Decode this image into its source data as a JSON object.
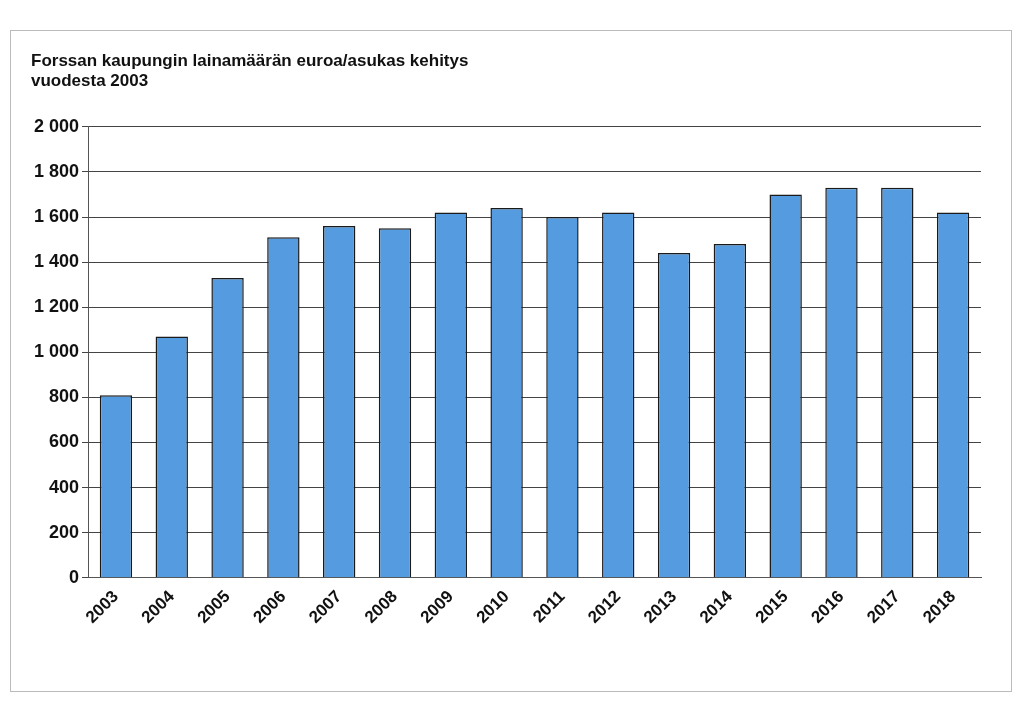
{
  "chart_data": {
    "type": "bar",
    "title": [
      "Forssan kaupungin lainamäärän euroa/asukas kehitys",
      "vuodesta 2003"
    ],
    "categories": [
      "2003",
      "2004",
      "2005",
      "2006",
      "2007",
      "2008",
      "2009",
      "2010",
      "2011",
      "2012",
      "2013",
      "2014",
      "2015",
      "2016",
      "2017",
      "2018"
    ],
    "values": [
      810,
      1070,
      1330,
      1510,
      1560,
      1550,
      1620,
      1640,
      1600,
      1620,
      1440,
      1480,
      1700,
      1730,
      1730,
      1620
    ],
    "color": "#559bdf",
    "ylim": [
      0,
      2000
    ],
    "yticks": [
      {
        "value": 0,
        "label": "0"
      },
      {
        "value": 200,
        "label": "200"
      },
      {
        "value": 400,
        "label": "400"
      },
      {
        "value": 600,
        "label": "600"
      },
      {
        "value": 800,
        "label": "800"
      },
      {
        "value": 1000,
        "label": "1 000"
      },
      {
        "value": 1200,
        "label": "1 200"
      },
      {
        "value": 1400,
        "label": "1 400"
      },
      {
        "value": 1600,
        "label": "1 600"
      },
      {
        "value": 1800,
        "label": "1 800"
      },
      {
        "value": 2000,
        "label": "2 000"
      }
    ],
    "grid": "y"
  }
}
